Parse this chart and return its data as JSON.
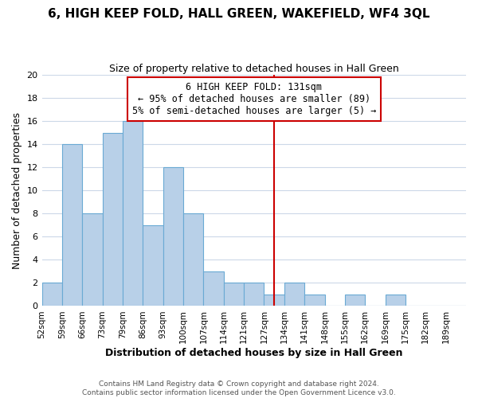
{
  "title": "6, HIGH KEEP FOLD, HALL GREEN, WAKEFIELD, WF4 3QL",
  "subtitle": "Size of property relative to detached houses in Hall Green",
  "xlabel": "Distribution of detached houses by size in Hall Green",
  "ylabel": "Number of detached properties",
  "bin_labels": [
    "52sqm",
    "59sqm",
    "66sqm",
    "73sqm",
    "79sqm",
    "86sqm",
    "93sqm",
    "100sqm",
    "107sqm",
    "114sqm",
    "121sqm",
    "127sqm",
    "134sqm",
    "141sqm",
    "148sqm",
    "155sqm",
    "162sqm",
    "169sqm",
    "175sqm",
    "182sqm",
    "189sqm"
  ],
  "bar_values": [
    2,
    14,
    8,
    15,
    16,
    7,
    12,
    8,
    3,
    2,
    2,
    1,
    2,
    1,
    0,
    1,
    0,
    1,
    0,
    0,
    0
  ],
  "bar_color": "#b8d0e8",
  "bar_edge_color": "#6aaad4",
  "vline_index": 11.5,
  "vline_color": "#cc0000",
  "ylim": [
    0,
    20
  ],
  "yticks": [
    0,
    2,
    4,
    6,
    8,
    10,
    12,
    14,
    16,
    18,
    20
  ],
  "annotation_title": "6 HIGH KEEP FOLD: 131sqm",
  "annotation_line1": "← 95% of detached houses are smaller (89)",
  "annotation_line2": "5% of semi-detached houses are larger (5) →",
  "annotation_box_color": "#ffffff",
  "annotation_border_color": "#cc0000",
  "footer_line1": "Contains HM Land Registry data © Crown copyright and database right 2024.",
  "footer_line2": "Contains public sector information licensed under the Open Government Licence v3.0.",
  "background_color": "#ffffff",
  "grid_color": "#ccd8e8"
}
